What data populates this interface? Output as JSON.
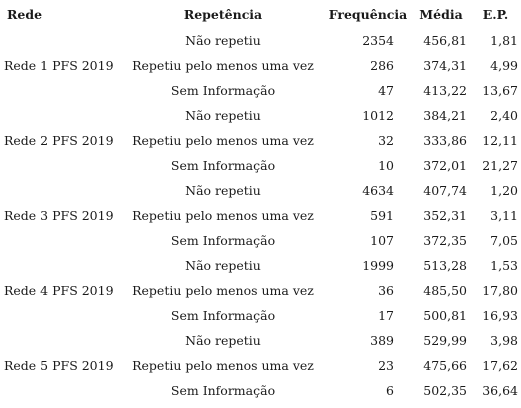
{
  "table": {
    "headers": {
      "rede": "Rede",
      "repetencia": "Repetência",
      "frequencia": "Frequência",
      "media": "Média",
      "ep": "E.P."
    },
    "rows": [
      {
        "rede": "",
        "repetencia": "Não repetiu",
        "frequencia": "2354",
        "media": "456,81",
        "ep": "1,81"
      },
      {
        "rede": "Rede 1 PFS 2019",
        "repetencia": "Repetiu pelo menos uma vez",
        "frequencia": "286",
        "media": "374,31",
        "ep": "4,99"
      },
      {
        "rede": "",
        "repetencia": "Sem Informação",
        "frequencia": "47",
        "media": "413,22",
        "ep": "13,67"
      },
      {
        "rede": "",
        "repetencia": "Não repetiu",
        "frequencia": "1012",
        "media": "384,21",
        "ep": "2,40"
      },
      {
        "rede": "Rede 2 PFS 2019",
        "repetencia": "Repetiu pelo menos uma vez",
        "frequencia": "32",
        "media": "333,86",
        "ep": "12,11"
      },
      {
        "rede": "",
        "repetencia": "Sem Informação",
        "frequencia": "10",
        "media": "372,01",
        "ep": "21,27"
      },
      {
        "rede": "",
        "repetencia": "Não repetiu",
        "frequencia": "4634",
        "media": "407,74",
        "ep": "1,20"
      },
      {
        "rede": "Rede 3 PFS 2019",
        "repetencia": "Repetiu pelo menos uma vez",
        "frequencia": "591",
        "media": "352,31",
        "ep": "3,11"
      },
      {
        "rede": "",
        "repetencia": "Sem Informação",
        "frequencia": "107",
        "media": "372,35",
        "ep": "7,05"
      },
      {
        "rede": "",
        "repetencia": "Não repetiu",
        "frequencia": "1999",
        "media": "513,28",
        "ep": "1,53"
      },
      {
        "rede": "Rede 4 PFS 2019",
        "repetencia": "Repetiu pelo menos uma vez",
        "frequencia": "36",
        "media": "485,50",
        "ep": "17,80"
      },
      {
        "rede": "",
        "repetencia": "Sem Informação",
        "frequencia": "17",
        "media": "500,81",
        "ep": "16,93"
      },
      {
        "rede": "",
        "repetencia": "Não repetiu",
        "frequencia": "389",
        "media": "529,99",
        "ep": "3,98"
      },
      {
        "rede": "Rede 5 PFS 2019",
        "repetencia": "Repetiu pelo menos uma vez",
        "frequencia": "23",
        "media": "475,66",
        "ep": "17,62"
      },
      {
        "rede": "",
        "repetencia": "Sem Informação",
        "frequencia": "6",
        "media": "502,35",
        "ep": "36,64"
      }
    ]
  }
}
